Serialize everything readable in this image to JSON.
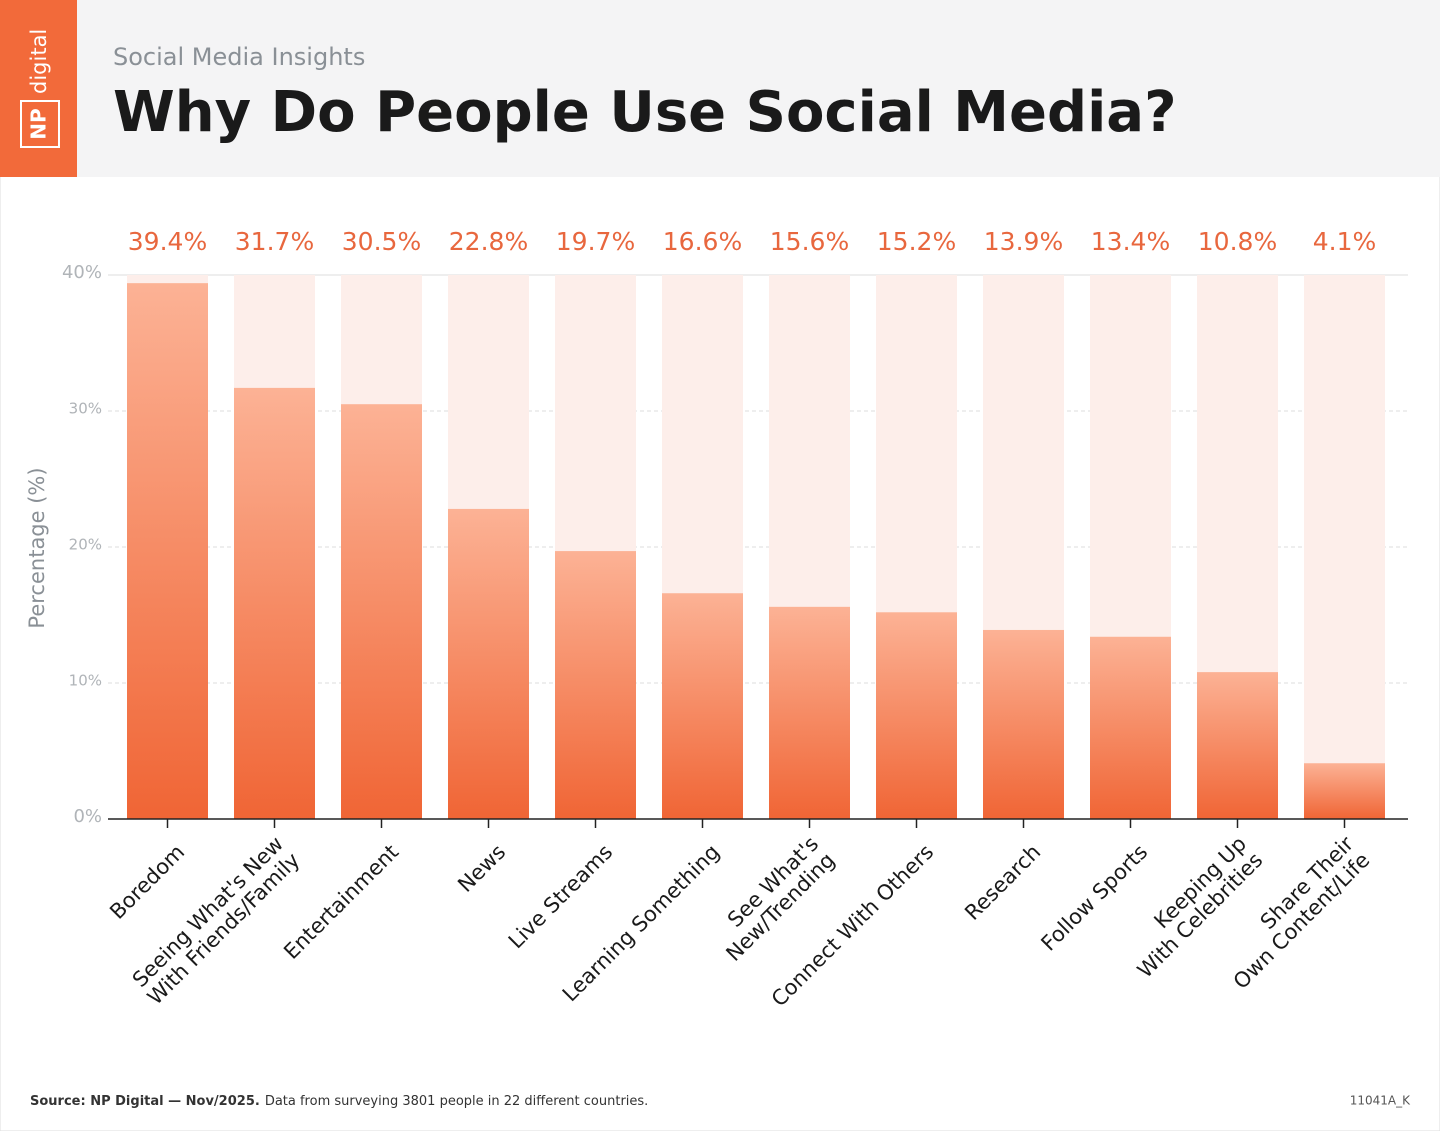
{
  "logo": {
    "mark": "NP",
    "name": "digital"
  },
  "chart_data": {
    "type": "bar",
    "subtitle": "Social Media Insights",
    "title": "Why Do People Use Social Media?",
    "y_label": "Percentage (%)",
    "categories": [
      "Boredom",
      "Seeing What's New\nWith Friends/Family",
      "Entertainment",
      "News",
      "Live Streams",
      "Learning Something",
      "See What's\nNew/Trending",
      "Connect With Others",
      "Research",
      "Follow Sports",
      "Keeping Up\nWith Celebrities",
      "Share Their\nOwn Content/Life"
    ],
    "values": [
      39.4,
      31.7,
      30.5,
      22.8,
      19.7,
      16.6,
      15.6,
      15.2,
      13.9,
      13.4,
      10.8,
      4.1
    ],
    "value_labels": [
      "39.4%",
      "31.7%",
      "30.5%",
      "22.8%",
      "19.7%",
      "16.6%",
      "15.6%",
      "15.2%",
      "13.9%",
      "13.4%",
      "10.8%",
      "4.1%"
    ],
    "color": "#f06535",
    "ylim": [
      0,
      40
    ],
    "yticks": [
      {
        "value": 0,
        "label": "0%"
      },
      {
        "value": 10,
        "label": "10%"
      },
      {
        "value": 20,
        "label": "20%"
      },
      {
        "value": 30,
        "label": "30%"
      },
      {
        "value": 40,
        "label": "40%"
      }
    ],
    "grid": true,
    "source_bold": "Source: NP Digital — Nov/2025.",
    "source": "Data from surveying 3801 people in 22 different countries.",
    "code": "11041A_K"
  }
}
